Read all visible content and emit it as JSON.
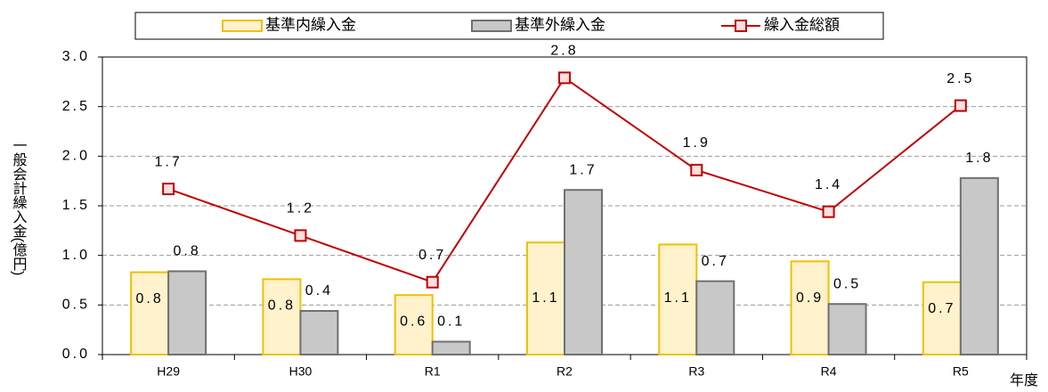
{
  "chart_data": {
    "type": "bar-line",
    "y_label": "一般会計繰入金(億円)",
    "x_label": "年度",
    "categories": [
      "H29",
      "H30",
      "R1",
      "R2",
      "R3",
      "R4",
      "R5"
    ],
    "series": [
      {
        "name": "基準内繰入金",
        "type": "bar",
        "color": "#fff2cc",
        "edge": "#f0c000",
        "values": [
          0.83,
          0.76,
          0.6,
          1.13,
          1.11,
          0.94,
          0.73
        ],
        "value_labels": [
          "0.8",
          "0.8",
          "0.6",
          "1.1",
          "1.1",
          "0.9",
          "0.7"
        ]
      },
      {
        "name": "基準外繰入金",
        "type": "bar",
        "color": "#c8c8c8",
        "edge": "#707070",
        "values": [
          0.84,
          0.44,
          0.13,
          1.66,
          0.74,
          0.51,
          1.78
        ],
        "value_labels": [
          "0.8",
          "0.4",
          "0.1",
          "1.7",
          "0.7",
          "0.5",
          "1.8"
        ]
      },
      {
        "name": "繰入金総額",
        "type": "line",
        "color": "#c00000",
        "values": [
          1.67,
          1.2,
          0.73,
          2.79,
          1.86,
          1.44,
          2.51
        ],
        "value_labels": [
          "1.7",
          "1.2",
          "0.7",
          "2.8",
          "1.9",
          "1.4",
          "2.5"
        ]
      }
    ],
    "ylim": [
      0,
      3.0
    ],
    "yticks": [
      {
        "value": 0,
        "label": "0.0"
      },
      {
        "value": 0.5,
        "label": "0.5"
      },
      {
        "value": 1,
        "label": "1.0"
      },
      {
        "value": 1.5,
        "label": "1.5"
      },
      {
        "value": 2,
        "label": "2.0"
      },
      {
        "value": 2.5,
        "label": "2.5"
      },
      {
        "value": 3,
        "label": "3.0"
      }
    ],
    "grid": true,
    "legend": "top"
  }
}
